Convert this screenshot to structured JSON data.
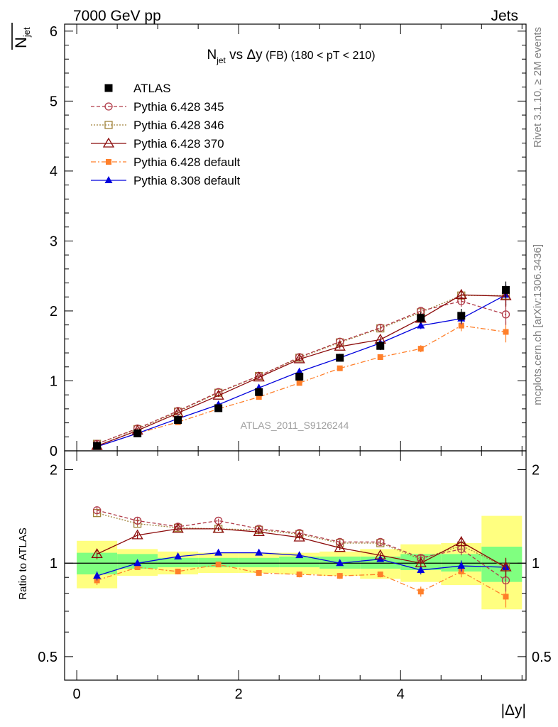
{
  "header": {
    "left": "7000 GeV pp",
    "right": "Jets"
  },
  "side_labels": {
    "rivet": "Rivet 3.1.10, ≥ 2M events",
    "mcplots": "mcplots.cern.ch [arXiv:1306.3436]"
  },
  "watermark": "ATLAS_2011_S9126244",
  "top_title": {
    "n": "N",
    "sub": "jet",
    "rest": " vs Δy",
    "small": " (FB)",
    "range": " (180 < pT < 210)"
  },
  "ylabel_top": {
    "n": "N",
    "sub": "jet"
  },
  "ylabel_bottom": "Ratio to ATLAS",
  "xlabel": "|Δy|",
  "colors": {
    "data": "#000000",
    "p345": "#b03a48",
    "p346": "#a0823a",
    "p370": "#8b0a0a",
    "pdef": "#ff7f2a",
    "p8": "#0000dd",
    "band_inner": "#80ff80",
    "band_outer": "#ffff80"
  },
  "chart_data": [
    {
      "type": "line",
      "x": [
        0.25,
        0.75,
        1.25,
        1.75,
        2.25,
        2.75,
        3.25,
        3.75,
        4.25,
        4.75,
        5.3
      ],
      "xlim": [
        -0.15,
        5.55
      ],
      "ylim": [
        0,
        6.1
      ],
      "yticks": [
        0,
        1,
        2,
        3,
        4,
        5,
        6
      ],
      "series": [
        {
          "name": "ATLAS",
          "key": "data",
          "values": [
            0.07,
            0.25,
            0.44,
            0.61,
            0.84,
            1.06,
            1.33,
            1.5,
            1.9,
            1.93,
            2.3
          ],
          "errors": [
            0.02,
            0.02,
            0.03,
            0.03,
            0.04,
            0.05,
            0.05,
            0.06,
            0.08,
            0.1,
            0.12
          ]
        },
        {
          "name": "Pythia 6.428 345",
          "key": "p345",
          "values": [
            0.1,
            0.32,
            0.57,
            0.84,
            1.07,
            1.34,
            1.56,
            1.76,
            2.0,
            2.14,
            1.95
          ],
          "errors": [
            0.01,
            0.01,
            0.01,
            0.02,
            0.02,
            0.03,
            0.03,
            0.04,
            0.05,
            0.08,
            0.15
          ]
        },
        {
          "name": "Pythia 6.428 346",
          "key": "p346",
          "values": [
            0.1,
            0.31,
            0.56,
            0.83,
            1.07,
            1.33,
            1.55,
            1.75,
            1.98,
            2.22,
            2.22
          ],
          "errors": [
            0.01,
            0.01,
            0.01,
            0.02,
            0.02,
            0.03,
            0.03,
            0.04,
            0.05,
            0.08,
            0.15
          ]
        },
        {
          "name": "Pythia 6.428 370",
          "key": "p370",
          "values": [
            0.07,
            0.29,
            0.54,
            0.79,
            1.05,
            1.31,
            1.49,
            1.59,
            1.89,
            2.23,
            2.21
          ],
          "errors": [
            0.01,
            0.01,
            0.01,
            0.02,
            0.02,
            0.03,
            0.03,
            0.04,
            0.05,
            0.08,
            0.15
          ]
        },
        {
          "name": "Pythia 6.428 default",
          "key": "pdef",
          "values": [
            0.06,
            0.25,
            0.41,
            0.6,
            0.77,
            0.97,
            1.18,
            1.34,
            1.46,
            1.79,
            1.7
          ],
          "errors": [
            0.01,
            0.01,
            0.01,
            0.02,
            0.02,
            0.03,
            0.03,
            0.04,
            0.05,
            0.08,
            0.15
          ]
        },
        {
          "name": "Pythia 8.308 default",
          "key": "p8",
          "values": [
            0.06,
            0.25,
            0.46,
            0.66,
            0.9,
            1.13,
            1.33,
            1.54,
            1.79,
            1.89,
            2.23
          ],
          "errors": [
            0.01,
            0.01,
            0.01,
            0.02,
            0.02,
            0.03,
            0.03,
            0.04,
            0.05,
            0.08,
            0.15
          ]
        }
      ]
    },
    {
      "type": "line",
      "x": [
        0.25,
        0.75,
        1.25,
        1.75,
        2.25,
        2.75,
        3.25,
        3.75,
        4.25,
        4.75,
        5.3
      ],
      "bins": [
        [
          0,
          0.5
        ],
        [
          0.5,
          1.0
        ],
        [
          1.0,
          1.5
        ],
        [
          1.5,
          2.0
        ],
        [
          2.0,
          2.5
        ],
        [
          2.5,
          3.0
        ],
        [
          3.0,
          3.5
        ],
        [
          3.5,
          4.0
        ],
        [
          4.0,
          4.5
        ],
        [
          4.5,
          5.0
        ],
        [
          5.0,
          5.5
        ]
      ],
      "xlim": [
        -0.15,
        5.55
      ],
      "ylim": [
        0.42,
        2.3
      ],
      "log_y": true,
      "yticks": [
        0.5,
        1,
        2
      ],
      "xticks": [
        0,
        2,
        4
      ],
      "reference": 1,
      "band_inner": [
        [
          0.92,
          1.08
        ],
        [
          0.96,
          1.07
        ],
        [
          0.97,
          1.04
        ],
        [
          0.97,
          1.04
        ],
        [
          0.97,
          1.04
        ],
        [
          0.97,
          1.05
        ],
        [
          0.96,
          1.05
        ],
        [
          0.96,
          1.05
        ],
        [
          0.95,
          1.07
        ],
        [
          0.94,
          1.07
        ],
        [
          0.87,
          1.13
        ]
      ],
      "band_outer": [
        [
          0.83,
          1.18
        ],
        [
          0.91,
          1.11
        ],
        [
          0.92,
          1.09
        ],
        [
          0.93,
          1.08
        ],
        [
          0.93,
          1.08
        ],
        [
          0.92,
          1.08
        ],
        [
          0.91,
          1.09
        ],
        [
          0.89,
          1.11
        ],
        [
          0.87,
          1.15
        ],
        [
          0.85,
          1.16
        ],
        [
          0.71,
          1.42
        ]
      ],
      "series": [
        {
          "name": "Pythia 6.428 345",
          "key": "p345",
          "values": [
            1.48,
            1.37,
            1.31,
            1.37,
            1.29,
            1.25,
            1.17,
            1.17,
            1.04,
            1.11,
            0.88
          ],
          "errors": [
            0.04,
            0.03,
            0.02,
            0.02,
            0.02,
            0.02,
            0.02,
            0.02,
            0.03,
            0.05,
            0.07
          ]
        },
        {
          "name": "Pythia 6.428 346",
          "key": "p346",
          "values": [
            1.45,
            1.34,
            1.3,
            1.29,
            1.28,
            1.24,
            1.16,
            1.16,
            1.03,
            1.14,
            0.97
          ],
          "errors": [
            0.04,
            0.03,
            0.02,
            0.02,
            0.02,
            0.02,
            0.02,
            0.02,
            0.03,
            0.05,
            0.07
          ]
        },
        {
          "name": "Pythia 6.428 370",
          "key": "p370",
          "values": [
            1.07,
            1.23,
            1.29,
            1.29,
            1.26,
            1.21,
            1.12,
            1.06,
            1.0,
            1.17,
            0.97
          ],
          "errors": [
            0.04,
            0.03,
            0.02,
            0.02,
            0.02,
            0.02,
            0.02,
            0.02,
            0.03,
            0.05,
            0.07
          ]
        },
        {
          "name": "Pythia 6.428 default",
          "key": "pdef",
          "values": [
            0.88,
            0.97,
            0.94,
            0.99,
            0.93,
            0.92,
            0.91,
            0.92,
            0.81,
            0.94,
            0.78
          ],
          "errors": [
            0.03,
            0.02,
            0.02,
            0.02,
            0.02,
            0.02,
            0.02,
            0.02,
            0.03,
            0.04,
            0.06
          ]
        },
        {
          "name": "Pythia 8.308 default",
          "key": "p8",
          "values": [
            0.91,
            1.0,
            1.05,
            1.08,
            1.08,
            1.06,
            1.0,
            1.03,
            0.95,
            0.98,
            0.97
          ],
          "errors": [
            0.03,
            0.02,
            0.02,
            0.02,
            0.02,
            0.02,
            0.02,
            0.02,
            0.03,
            0.04,
            0.06
          ]
        }
      ]
    }
  ]
}
